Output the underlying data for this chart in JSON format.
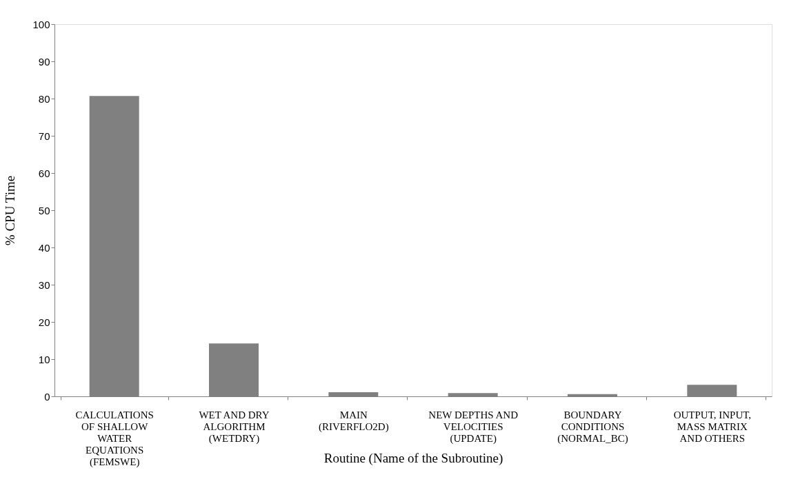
{
  "chart_data": {
    "type": "bar",
    "xlabel": "Routine (Name of the Subroutine)",
    "ylabel": "% CPU Time",
    "categories": [
      "CALCULATIONS\nOF SHALLOW\nWATER\nEQUATIONS\n(FEMSWE)",
      "WET AND  DRY\nALGORITHM\n(WETDRY)",
      "MAIN\n(RIVERFLO2D)",
      "NEW DEPTHS AND\nVELOCITIES\n(UPDATE)",
      "BOUNDARY\nCONDITIONS\n(NORMAL_BC)",
      "OUTPUT, INPUT,\nMASS MATRIX\nAND OTHERS"
    ],
    "values": [
      80.7,
      14.2,
      1.1,
      0.9,
      0.6,
      3.1
    ],
    "color": "#808080",
    "ylim": [
      0,
      100
    ],
    "yticks": [
      0,
      10,
      20,
      30,
      40,
      50,
      60,
      70,
      80,
      90,
      100
    ],
    "grid": false
  }
}
